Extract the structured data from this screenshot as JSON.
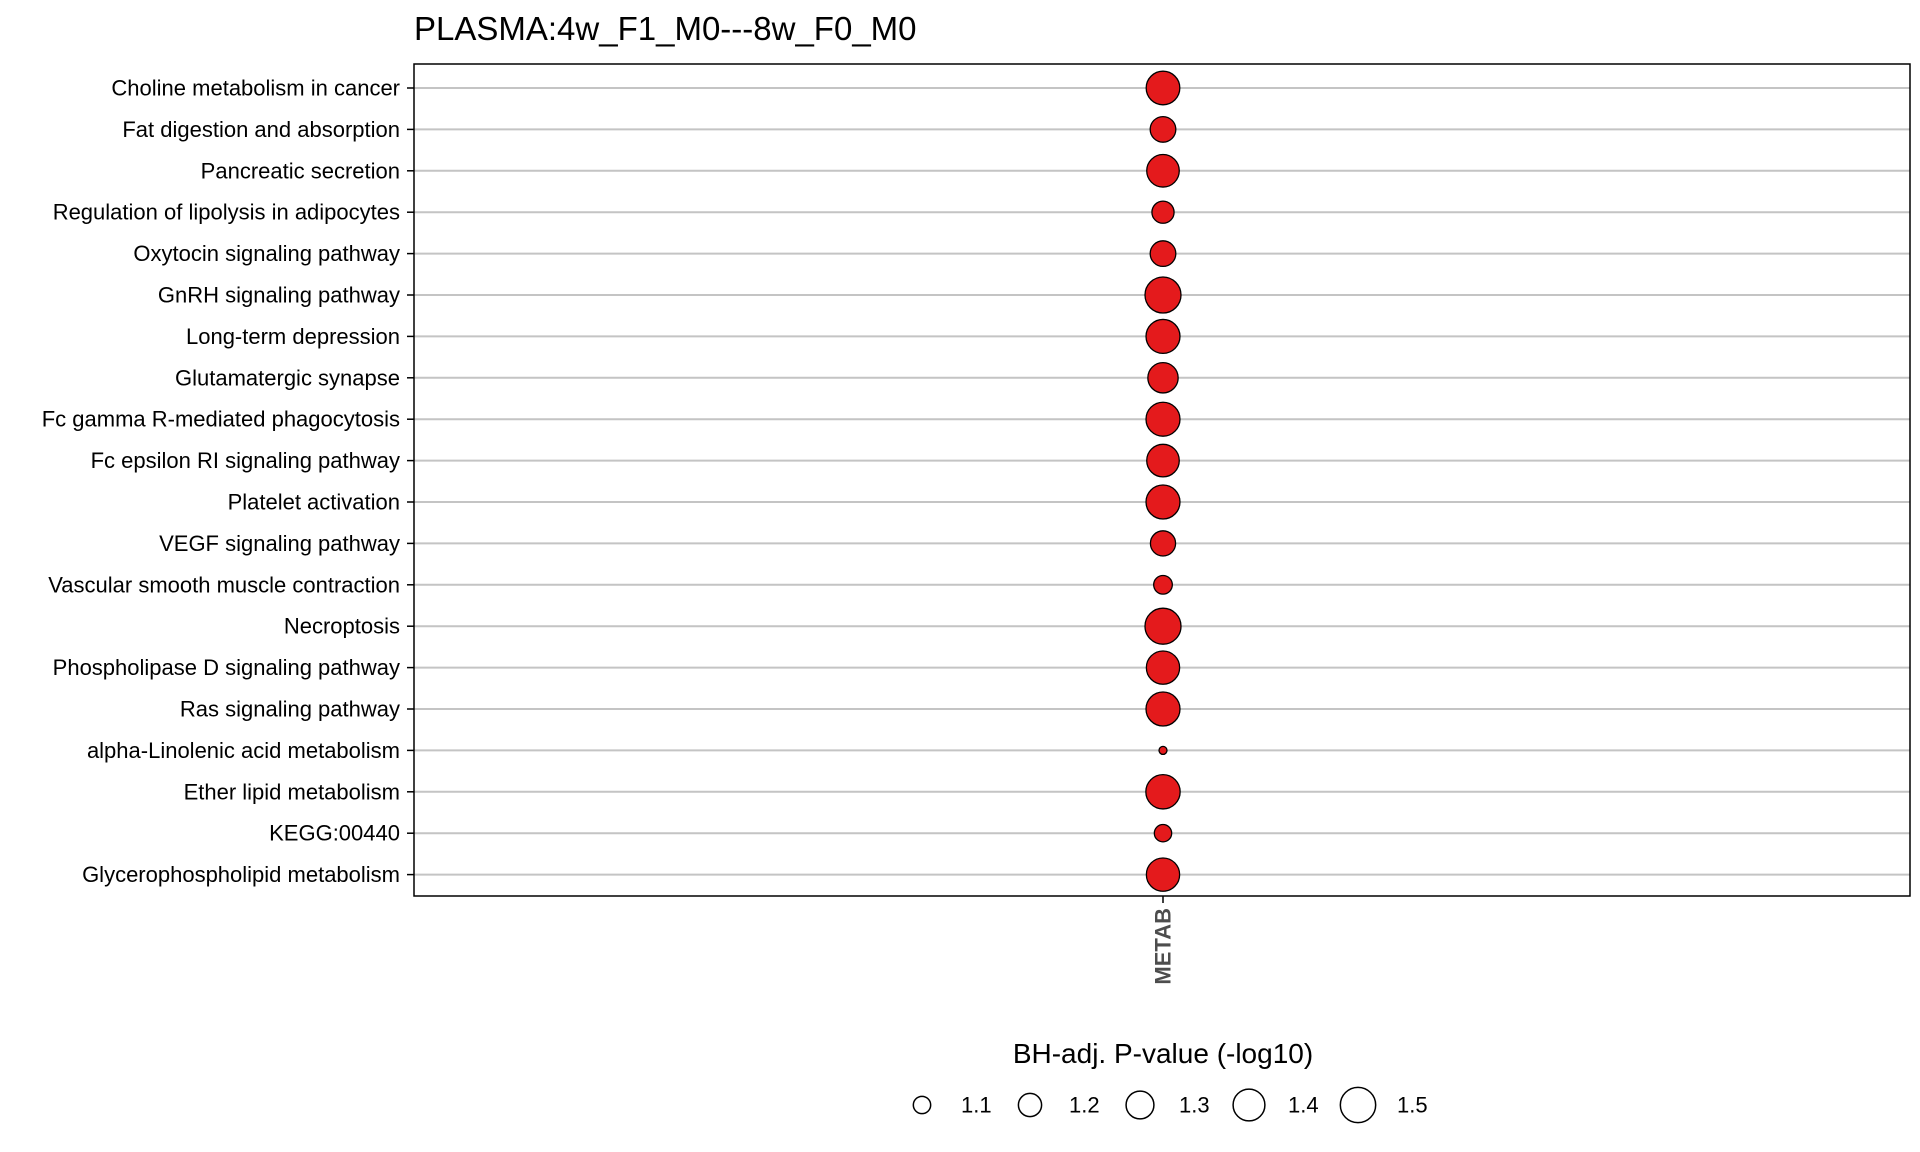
{
  "chart_data": {
    "type": "scatter",
    "title": "PLASMA:4w_F1_M0---8w_F0_M0",
    "xlabel": "",
    "ylabel": "",
    "x_categories": [
      "METAB"
    ],
    "y_categories": [
      "Choline metabolism in cancer",
      "Fat digestion and absorption",
      "Pancreatic secretion",
      "Regulation of lipolysis in adipocytes",
      "Oxytocin signaling pathway",
      "GnRH signaling pathway",
      "Long-term depression",
      "Glutamatergic synapse",
      "Fc gamma R-mediated phagocytosis",
      "Fc epsilon RI signaling pathway",
      "Platelet activation",
      "VEGF signaling pathway",
      "Vascular smooth muscle contraction",
      "Necroptosis",
      "Phospholipase D signaling pathway",
      "Ras signaling pathway",
      "alpha-Linolenic acid metabolism",
      "Ether lipid metabolism",
      "KEGG:00440",
      "Glycerophospholipid metabolism"
    ],
    "size_variable": "BH-adj. P-value (-log10)",
    "points": [
      {
        "y": "Choline metabolism in cancer",
        "x": "METAB",
        "value": 1.45
      },
      {
        "y": "Fat digestion and absorption",
        "x": "METAB",
        "value": 1.25
      },
      {
        "y": "Pancreatic secretion",
        "x": "METAB",
        "value": 1.42
      },
      {
        "y": "Regulation of lipolysis in adipocytes",
        "x": "METAB",
        "value": 1.18
      },
      {
        "y": "Oxytocin signaling pathway",
        "x": "METAB",
        "value": 1.25
      },
      {
        "y": "GnRH signaling pathway",
        "x": "METAB",
        "value": 1.52
      },
      {
        "y": "Long-term depression",
        "x": "METAB",
        "value": 1.46
      },
      {
        "y": "Glutamatergic synapse",
        "x": "METAB",
        "value": 1.36
      },
      {
        "y": "Fc gamma R-mediated phagocytosis",
        "x": "METAB",
        "value": 1.46
      },
      {
        "y": "Fc epsilon RI signaling pathway",
        "x": "METAB",
        "value": 1.42
      },
      {
        "y": "Platelet activation",
        "x": "METAB",
        "value": 1.46
      },
      {
        "y": "VEGF signaling pathway",
        "x": "METAB",
        "value": 1.24
      },
      {
        "y": "Vascular smooth muscle contraction",
        "x": "METAB",
        "value": 1.12
      },
      {
        "y": "Necroptosis",
        "x": "METAB",
        "value": 1.52
      },
      {
        "y": "Phospholipase D signaling pathway",
        "x": "METAB",
        "value": 1.44
      },
      {
        "y": "Ras signaling pathway",
        "x": "METAB",
        "value": 1.46
      },
      {
        "y": "alpha-Linolenic acid metabolism",
        "x": "METAB",
        "value": 1.0
      },
      {
        "y": "Ether lipid metabolism",
        "x": "METAB",
        "value": 1.47
      },
      {
        "y": "KEGG:00440",
        "x": "METAB",
        "value": 1.1
      },
      {
        "y": "Glycerophospholipid metabolism",
        "x": "METAB",
        "value": 1.44
      }
    ],
    "legend": {
      "title": "BH-adj. P-value (-log10)",
      "placement": "bottom",
      "entries": [
        {
          "label": "1.1",
          "value": 1.1
        },
        {
          "label": "1.2",
          "value": 1.2
        },
        {
          "label": "1.3",
          "value": 1.3
        },
        {
          "label": "1.4",
          "value": 1.4
        },
        {
          "label": "1.5",
          "value": 1.5
        }
      ]
    },
    "point_fill": "#e41a1c",
    "point_stroke": "#000000",
    "grid": "horizontal",
    "size_range": [
      1.0,
      1.52
    ]
  }
}
